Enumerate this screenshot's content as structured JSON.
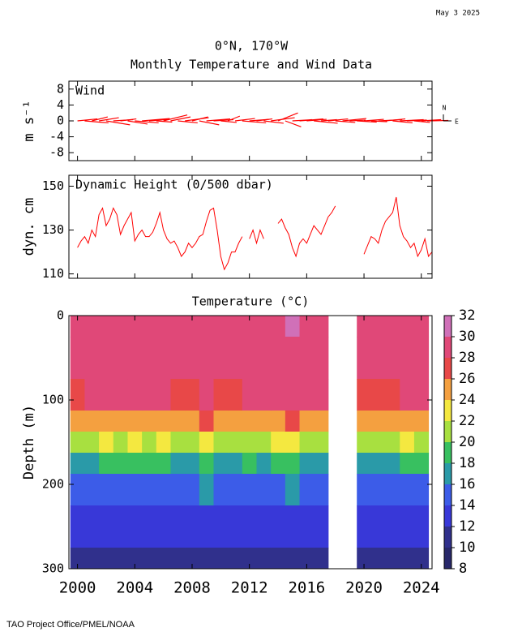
{
  "date": "May  3 2025",
  "title": "0°N, 170°W",
  "subtitle": "Monthly Temperature and Wind Data",
  "footer": "TAO Project Office/PMEL/NOAA",
  "chart_data": [
    {
      "type": "quiver",
      "title": "Wind",
      "ylabel": "m s⁻¹",
      "color": "#ff0000",
      "compass_labels": [
        "N",
        "E"
      ],
      "xlim": [
        1999.4,
        2024.75
      ],
      "xticks": [
        2000,
        2004,
        2008,
        2012,
        2016,
        2020,
        2024
      ],
      "ylim": [
        -10,
        10
      ],
      "yticks": [
        -8,
        -4,
        0,
        4,
        8
      ],
      "x": [
        2000,
        2000.5,
        2001,
        2001.5,
        2002,
        2002.5,
        2003,
        2003.5,
        2004,
        2004.5,
        2005,
        2005.5,
        2006,
        2006.5,
        2007,
        2007.5,
        2008,
        2008.5,
        2009,
        2009.5,
        2010,
        2010.5,
        2011,
        2011.5,
        2012,
        2012.5,
        2013,
        2013.5,
        2014,
        2014.5,
        2015,
        2015.5,
        2016,
        2016.5,
        2017,
        2017.5,
        2018,
        2018.5,
        2019,
        2019.5,
        2020,
        2020.5,
        2021,
        2021.5,
        2022,
        2022.5,
        2023,
        2023.5,
        2024,
        2024.5
      ],
      "u": [
        5,
        6,
        4,
        5,
        6,
        5,
        4,
        5,
        6,
        7,
        5,
        4,
        6,
        5,
        5,
        6,
        4,
        5,
        6,
        5,
        4,
        3,
        5,
        6,
        5,
        4,
        5,
        6,
        5,
        4,
        5,
        6,
        5,
        6,
        4,
        5,
        5,
        6,
        4,
        5,
        5,
        4,
        6,
        5,
        5,
        6,
        5,
        4,
        5,
        5
      ],
      "v": [
        0.5,
        -0.5,
        1,
        0.8,
        -1,
        0.3,
        0.5,
        -0.8,
        -0.5,
        0.6,
        0.4,
        -0.3,
        1.5,
        1,
        -0.5,
        0.8,
        1,
        -1,
        0.5,
        0.3,
        -0.4,
        1.2,
        0.6,
        -0.5,
        0.4,
        0.5,
        -0.6,
        0.8,
        2,
        -1.5,
        0.3,
        0.5,
        0.4,
        -0.6,
        0.3,
        0.5,
        -0.4,
        0.6,
        0.2,
        -0.3,
        0.4,
        -0.2,
        0.3,
        0.5,
        -0.5,
        0.3,
        0.2,
        -0.4,
        0.3,
        0.1
      ]
    },
    {
      "type": "line",
      "title": "Dynamic Height (0/500 dbar)",
      "ylabel": "dyn. cm",
      "color": "#ff0000",
      "xlim": [
        1999.4,
        2024.75
      ],
      "xticks": [
        2000,
        2004,
        2008,
        2012,
        2016,
        2020,
        2024
      ],
      "ylim": [
        108,
        155
      ],
      "yticks": [
        110,
        130,
        150
      ],
      "x": [
        2000,
        2000.25,
        2000.5,
        2000.75,
        2001,
        2001.25,
        2001.5,
        2001.75,
        2002,
        2002.25,
        2002.5,
        2002.75,
        2003,
        2003.25,
        2003.5,
        2003.75,
        2004,
        2004.25,
        2004.5,
        2004.75,
        2005,
        2005.25,
        2005.5,
        2005.75,
        2006,
        2006.25,
        2006.5,
        2006.75,
        2007,
        2007.25,
        2007.5,
        2007.75,
        2008,
        2008.25,
        2008.5,
        2008.75,
        2009,
        2009.25,
        2009.5,
        2009.75,
        2010,
        2010.25,
        2010.5,
        2010.75,
        2011,
        2011.25,
        2011.5,
        2011.75,
        2012,
        2012.25,
        2012.5,
        2012.75,
        2013,
        2013.25,
        2013.5,
        2013.75,
        2014,
        2014.25,
        2014.5,
        2014.75,
        2015,
        2015.25,
        2015.5,
        2015.75,
        2016,
        2016.25,
        2016.5,
        2016.75,
        2017,
        2017.25,
        2017.5,
        2017.75,
        2018,
        2018.25,
        2018.5,
        2018.75,
        2019,
        2019.25,
        2019.5,
        2019.75,
        2020,
        2020.25,
        2020.5,
        2020.75,
        2021,
        2021.25,
        2021.5,
        2021.75,
        2022,
        2022.25,
        2022.5,
        2022.75,
        2023,
        2023.25,
        2023.5,
        2023.75,
        2024,
        2024.25,
        2024.5,
        2024.75
      ],
      "values": [
        122,
        125,
        127,
        124,
        130,
        127,
        137,
        140,
        132,
        135,
        140,
        137,
        128,
        132,
        135,
        138,
        125,
        128,
        130,
        127,
        127,
        129,
        133,
        138,
        130,
        126,
        124,
        125,
        122,
        118,
        120,
        124,
        122,
        124,
        127,
        128,
        134,
        139,
        140,
        130,
        118,
        112,
        115,
        120,
        120,
        124,
        127,
        null,
        126,
        130,
        124,
        130,
        126,
        null,
        null,
        null,
        133,
        135,
        131,
        128,
        122,
        118,
        124,
        126,
        124,
        128,
        132,
        130,
        128,
        132,
        136,
        138,
        141,
        null,
        null,
        null,
        null,
        null,
        null,
        null,
        119,
        123,
        127,
        126,
        124,
        130,
        134,
        136,
        138,
        145,
        132,
        127,
        125,
        122,
        124,
        118,
        121,
        126,
        118,
        120
      ]
    },
    {
      "type": "heatmap",
      "title": "Temperature (°C)",
      "ylabel": "Depth (m)",
      "xlim": [
        1999.4,
        2024.75
      ],
      "xticks": [
        2000,
        2004,
        2008,
        2012,
        2016,
        2020,
        2024
      ],
      "ylim": [
        300,
        0
      ],
      "yticks": [
        0,
        100,
        200,
        300
      ],
      "clim": [
        8,
        32
      ],
      "cticks": [
        8,
        10,
        12,
        14,
        16,
        18,
        20,
        22,
        24,
        26,
        28,
        30,
        32
      ],
      "colors": [
        "#28286a",
        "#30308c",
        "#3838d8",
        "#3c5ce8",
        "#2a9aa8",
        "#38c060",
        "#a8e040",
        "#f4e840",
        "#f4a040",
        "#e84848",
        "#e04878",
        "#d070b8"
      ],
      "x": [
        2000,
        2001,
        2002,
        2003,
        2004,
        2005,
        2006,
        2007,
        2008,
        2009,
        2010,
        2011,
        2012,
        2013,
        2014,
        2015,
        2016,
        2017,
        2018,
        2019,
        2020,
        2021,
        2022,
        2023,
        2024
      ],
      "depths": [
        0,
        50,
        100,
        125,
        150,
        175,
        200,
        250,
        300
      ],
      "values": [
        [
          28.8,
          28.7,
          27.5,
          24,
          20,
          17,
          15,
          13.2,
          11.2
        ],
        [
          29.2,
          29,
          28,
          24.5,
          21,
          17.5,
          15.2,
          13.4,
          11.4
        ],
        [
          29.8,
          29.6,
          28.6,
          25.5,
          22,
          18.5,
          15.8,
          13.6,
          11.6
        ],
        [
          29.6,
          29.4,
          28.4,
          25,
          21.5,
          18,
          15.5,
          13.5,
          11.5
        ],
        [
          29.7,
          29.5,
          28.6,
          25.5,
          22,
          18.5,
          15.6,
          13.5,
          11.5
        ],
        [
          29.4,
          29.2,
          28.2,
          25,
          21.5,
          18,
          15.4,
          13.4,
          11.4
        ],
        [
          29.6,
          29.4,
          28.5,
          25.5,
          22,
          18.5,
          15.6,
          13.6,
          11.6
        ],
        [
          29,
          28.8,
          27.8,
          24.5,
          21,
          17.5,
          15.2,
          13.3,
          11.3
        ],
        [
          28.9,
          28.7,
          27.6,
          24,
          20.5,
          17.2,
          15,
          13.2,
          11.2
        ],
        [
          29.8,
          29.6,
          28.8,
          26,
          22.5,
          19,
          16,
          13.8,
          11.8
        ],
        [
          29.1,
          28.9,
          27.8,
          24.5,
          20.8,
          17.4,
          15.1,
          13.3,
          11.3
        ],
        [
          29,
          28.8,
          27.7,
          24.2,
          20.6,
          17.3,
          15,
          13.2,
          11.2
        ],
        [
          29.4,
          29.2,
          28.2,
          25,
          21.5,
          18,
          15.5,
          13.5,
          11.5
        ],
        [
          29.3,
          29.1,
          28.1,
          24.8,
          21.2,
          17.8,
          15.4,
          13.4,
          11.4
        ],
        [
          29.7,
          29.5,
          28.6,
          25.5,
          22,
          18.5,
          15.7,
          13.6,
          11.6
        ],
        [
          30.1,
          29.9,
          29,
          26.5,
          23,
          19.2,
          16.2,
          13.9,
          11.9
        ],
        [
          29.5,
          29.2,
          28,
          24.8,
          21,
          17.6,
          15.3,
          13.4,
          11.4
        ],
        [
          29.3,
          29.1,
          28.1,
          24.8,
          21.2,
          17.8,
          15.4,
          13.4,
          11.4
        ],
        [
          null,
          null,
          null,
          null,
          null,
          null,
          null,
          null,
          null
        ],
        [
          null,
          null,
          null,
          null,
          null,
          null,
          null,
          null,
          null
        ],
        [
          29,
          28.8,
          27.7,
          24.3,
          20.7,
          17.4,
          15.1,
          13.3,
          11.3
        ],
        [
          29.1,
          28.9,
          27.9,
          24.5,
          21,
          17.5,
          15.2,
          13.3,
          11.3
        ],
        [
          28.9,
          28.7,
          27.6,
          24.2,
          20.6,
          17.3,
          15,
          13.2,
          11.2
        ],
        [
          29.8,
          29.6,
          28.6,
          25.6,
          22,
          18.5,
          15.7,
          13.6,
          11.6
        ],
        [
          29.5,
          29.3,
          28.3,
          25,
          21.5,
          18,
          15.5,
          13.5,
          11.5
        ]
      ]
    }
  ]
}
